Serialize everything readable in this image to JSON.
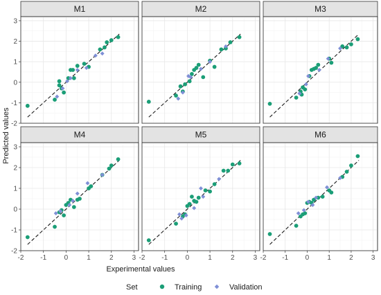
{
  "chart_data": {
    "type": "scatter",
    "facet_labels": [
      "M1",
      "M2",
      "M3",
      "M4",
      "M5",
      "M6"
    ],
    "xlabel": "Experimental values",
    "ylabel": "Predicted values",
    "xlim": [
      -2,
      3.2
    ],
    "ylim": [
      -2,
      3.2
    ],
    "x_ticks": [
      -2,
      -1,
      0,
      1,
      2,
      3
    ],
    "y_ticks": [
      -2,
      -1,
      0,
      1,
      2,
      3
    ],
    "grid": true,
    "legend": {
      "title": "Set",
      "position": "bottom",
      "entries": [
        {
          "label": "Training",
          "color": "#1b9e77",
          "shape": "circle"
        },
        {
          "label": "Validation",
          "color": "#7f8fd6",
          "shape": "diamond"
        }
      ]
    },
    "reference_line": {
      "style": "dashed",
      "slope": 1,
      "intercept": 0
    },
    "panels": [
      {
        "label": "M1",
        "training": [
          [
            -1.7,
            -1.15
          ],
          [
            -0.5,
            -0.85
          ],
          [
            -0.3,
            -0.15
          ],
          [
            -0.2,
            -0.3
          ],
          [
            -0.1,
            -0.5
          ],
          [
            0.1,
            0.2
          ],
          [
            0.2,
            0.6
          ],
          [
            0.3,
            0.6
          ],
          [
            0.35,
            0.2
          ],
          [
            0.5,
            0.8
          ],
          [
            0.8,
            0.9
          ],
          [
            1.0,
            0.75
          ],
          [
            1.5,
            1.6
          ],
          [
            1.7,
            1.7
          ],
          [
            1.8,
            1.95
          ],
          [
            2.0,
            2.05
          ],
          [
            2.3,
            2.2
          ],
          [
            -0.3,
            0.05
          ]
        ],
        "validation": [
          [
            -0.4,
            -0.7
          ],
          [
            -0.15,
            -0.3
          ],
          [
            0.2,
            0.2
          ],
          [
            0.5,
            0.6
          ],
          [
            0.9,
            0.7
          ],
          [
            1.3,
            1.3
          ],
          [
            1.6,
            1.4
          ],
          [
            0.05,
            0.05
          ]
        ]
      },
      {
        "label": "M2",
        "training": [
          [
            -1.7,
            -0.95
          ],
          [
            -0.5,
            -0.65
          ],
          [
            -0.3,
            -0.2
          ],
          [
            -0.2,
            -0.45
          ],
          [
            -0.1,
            -0.1
          ],
          [
            0.2,
            0.4
          ],
          [
            0.3,
            0.6
          ],
          [
            0.4,
            0.7
          ],
          [
            0.5,
            0.85
          ],
          [
            0.7,
            0.25
          ],
          [
            1.0,
            1.05
          ],
          [
            1.2,
            0.75
          ],
          [
            1.5,
            1.6
          ],
          [
            1.7,
            1.65
          ],
          [
            1.9,
            1.95
          ],
          [
            2.3,
            2.2
          ],
          [
            0.1,
            0.05
          ]
        ],
        "validation": [
          [
            -0.4,
            -0.8
          ],
          [
            -0.2,
            -0.5
          ],
          [
            0.15,
            0.25
          ],
          [
            0.6,
            0.65
          ],
          [
            1.0,
            1.0
          ],
          [
            1.7,
            1.75
          ],
          [
            0.05,
            0.3
          ]
        ]
      },
      {
        "label": "M3",
        "training": [
          [
            -1.7,
            -1.05
          ],
          [
            -0.5,
            -0.75
          ],
          [
            -0.3,
            -0.45
          ],
          [
            -0.2,
            -0.25
          ],
          [
            -0.1,
            -0.35
          ],
          [
            0.1,
            0.3
          ],
          [
            0.2,
            0.6
          ],
          [
            0.3,
            0.65
          ],
          [
            0.4,
            0.7
          ],
          [
            0.5,
            0.85
          ],
          [
            1.0,
            1.15
          ],
          [
            1.1,
            0.95
          ],
          [
            1.6,
            1.75
          ],
          [
            1.8,
            1.7
          ],
          [
            2.0,
            1.85
          ],
          [
            2.3,
            2.1
          ],
          [
            -0.25,
            -0.6
          ]
        ],
        "validation": [
          [
            -0.35,
            -0.55
          ],
          [
            0.05,
            0.3
          ],
          [
            0.55,
            0.6
          ],
          [
            0.95,
            1.15
          ],
          [
            1.5,
            1.65
          ],
          [
            -0.05,
            -0.1
          ]
        ]
      },
      {
        "label": "M4",
        "training": [
          [
            -1.7,
            -1.35
          ],
          [
            -0.5,
            -0.85
          ],
          [
            -0.3,
            -0.15
          ],
          [
            -0.2,
            -0.05
          ],
          [
            -0.1,
            -0.3
          ],
          [
            0.1,
            0.3
          ],
          [
            0.2,
            0.45
          ],
          [
            0.35,
            0.1
          ],
          [
            0.5,
            0.45
          ],
          [
            0.6,
            0.5
          ],
          [
            1.0,
            1.0
          ],
          [
            1.1,
            1.1
          ],
          [
            1.6,
            1.65
          ],
          [
            1.9,
            1.95
          ],
          [
            2.0,
            2.1
          ],
          [
            2.3,
            2.4
          ],
          [
            0.0,
            0.2
          ]
        ],
        "validation": [
          [
            -0.45,
            -0.2
          ],
          [
            -0.25,
            -0.1
          ],
          [
            0.15,
            0.2
          ],
          [
            0.5,
            0.75
          ],
          [
            0.95,
            1.25
          ],
          [
            1.6,
            1.65
          ],
          [
            0.3,
            0.4
          ]
        ]
      },
      {
        "label": "M5",
        "training": [
          [
            -1.7,
            -1.5
          ],
          [
            -0.5,
            -0.7
          ],
          [
            -0.2,
            -0.35
          ],
          [
            0.0,
            0.15
          ],
          [
            0.1,
            0.25
          ],
          [
            0.2,
            0.6
          ],
          [
            0.3,
            0.4
          ],
          [
            0.4,
            0.35
          ],
          [
            0.5,
            0.55
          ],
          [
            0.8,
            0.9
          ],
          [
            1.0,
            0.85
          ],
          [
            1.2,
            1.2
          ],
          [
            1.6,
            1.85
          ],
          [
            1.8,
            1.85
          ],
          [
            2.0,
            2.15
          ],
          [
            2.3,
            2.2
          ],
          [
            -0.1,
            -0.25
          ]
        ],
        "validation": [
          [
            -0.35,
            -0.25
          ],
          [
            -0.05,
            -0.3
          ],
          [
            0.3,
            0.05
          ],
          [
            0.7,
            0.6
          ],
          [
            1.4,
            1.45
          ],
          [
            0.6,
            1.0
          ],
          [
            -0.25,
            -0.45
          ]
        ]
      },
      {
        "label": "M6",
        "training": [
          [
            -1.7,
            -1.2
          ],
          [
            -0.5,
            -0.8
          ],
          [
            -0.3,
            -0.35
          ],
          [
            -0.1,
            -0.2
          ],
          [
            0.0,
            0.3
          ],
          [
            0.1,
            0.35
          ],
          [
            0.2,
            0.3
          ],
          [
            0.3,
            0.45
          ],
          [
            0.5,
            0.55
          ],
          [
            0.7,
            0.6
          ],
          [
            1.0,
            0.9
          ],
          [
            1.1,
            0.8
          ],
          [
            1.6,
            1.55
          ],
          [
            1.8,
            1.8
          ],
          [
            2.0,
            2.1
          ],
          [
            2.3,
            2.55
          ],
          [
            -0.2,
            -0.25
          ]
        ],
        "validation": [
          [
            -0.4,
            -0.2
          ],
          [
            -0.15,
            -0.05
          ],
          [
            0.05,
            0.35
          ],
          [
            0.4,
            0.55
          ],
          [
            0.9,
            1.05
          ],
          [
            1.5,
            1.5
          ],
          [
            0.25,
            0.2
          ]
        ]
      }
    ]
  }
}
